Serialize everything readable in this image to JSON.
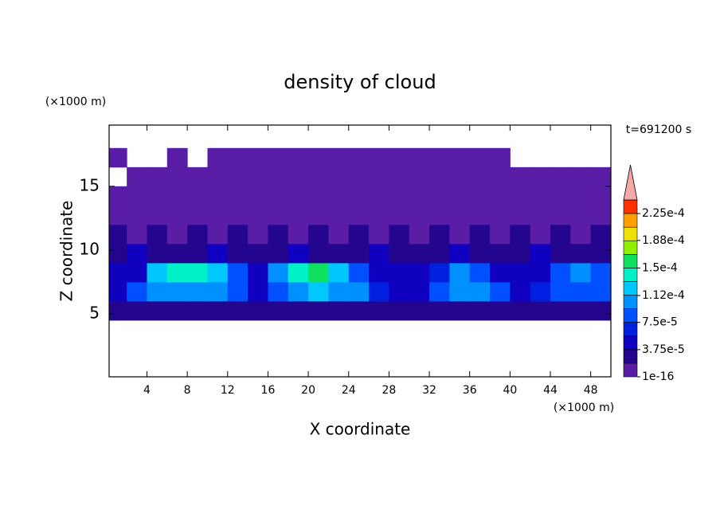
{
  "chart_data": {
    "type": "contour",
    "title": "density of cloud",
    "annotation": "t=691200 s",
    "xlabel": "X coordinate",
    "ylabel": "Z coordinate",
    "xunit": "(×1000 m)",
    "yunit": "(×1000 m)",
    "xlim": [
      0.25,
      50
    ],
    "ylim": [
      0.06,
      19.8
    ],
    "xticks": [
      4,
      8,
      12,
      16,
      20,
      24,
      28,
      32,
      36,
      40,
      44,
      48
    ],
    "yticks": [
      5,
      10,
      15
    ],
    "field": {
      "x": [
        0,
        2,
        4,
        6,
        8,
        10,
        12,
        14,
        16,
        18,
        20,
        22,
        24,
        26,
        28,
        30,
        32,
        34,
        36,
        38,
        40,
        42,
        44,
        46,
        48,
        50
      ],
      "z": [
        0,
        1.5,
        3,
        4.5,
        6,
        7.5,
        9,
        10.5,
        12,
        13.5,
        15,
        16.5,
        18,
        19.5
      ],
      "values": [
        [
          null,
          null,
          null,
          null,
          null,
          null,
          null,
          null,
          null,
          null,
          null,
          null,
          null,
          null,
          null,
          null,
          null,
          null,
          null,
          null,
          null,
          null,
          null,
          null,
          null
        ],
        [
          null,
          null,
          null,
          null,
          null,
          null,
          null,
          null,
          null,
          null,
          null,
          null,
          null,
          null,
          null,
          null,
          null,
          null,
          null,
          null,
          null,
          null,
          null,
          null,
          null
        ],
        [
          null,
          null,
          null,
          null,
          null,
          null,
          null,
          null,
          null,
          null,
          null,
          null,
          null,
          null,
          null,
          null,
          null,
          null,
          null,
          null,
          null,
          null,
          null,
          null,
          null
        ],
        [
          2.5e-05,
          2.5e-05,
          2.5e-05,
          2.5e-05,
          2.5e-05,
          2.5e-05,
          2.5e-05,
          2.5e-05,
          2.5e-05,
          2.5e-05,
          2.5e-05,
          2.5e-05,
          2.5e-05,
          2.5e-05,
          2.5e-05,
          2.5e-05,
          2.5e-05,
          2.5e-05,
          2.5e-05,
          2.5e-05,
          2.5e-05,
          2.5e-05,
          2.5e-05,
          2.5e-05,
          2.5e-05
        ],
        [
          5e-05,
          8e-05,
          0.0001,
          0.00011,
          0.00011,
          0.000105,
          9e-05,
          4e-05,
          9e-05,
          0.00011,
          0.000115,
          0.00011,
          0.0001,
          6e-05,
          4e-05,
          5e-05,
          9e-05,
          0.0001,
          0.0001,
          8e-05,
          5e-05,
          6e-05,
          8e-05,
          9e-05,
          8e-05
        ],
        [
          4e-05,
          5e-05,
          0.00012,
          0.000145,
          0.00014,
          0.00013,
          8e-05,
          4e-05,
          0.00011,
          0.000145,
          0.000155,
          0.00013,
          9e-05,
          5e-05,
          4e-05,
          4e-05,
          7e-05,
          0.000105,
          8e-05,
          5e-05,
          4e-05,
          5e-05,
          9e-05,
          0.0001,
          8e-05
        ],
        [
          3e-05,
          4e-05,
          3e-05,
          2.5e-05,
          3e-05,
          4e-05,
          3e-05,
          2.5e-05,
          3e-05,
          4e-05,
          3e-05,
          2.5e-05,
          3e-05,
          4e-05,
          3e-05,
          2.5e-05,
          3e-05,
          4e-05,
          3e-05,
          2.5e-05,
          3e-05,
          4e-05,
          3e-05,
          2.5e-05,
          3e-05
        ],
        [
          2e-05,
          1.5e-05,
          2e-05,
          1.5e-05,
          2e-05,
          1.5e-05,
          2e-05,
          1.5e-05,
          2e-05,
          1.5e-05,
          2e-05,
          1.5e-05,
          2e-05,
          1.5e-05,
          2e-05,
          1.5e-05,
          2e-05,
          1.5e-05,
          2e-05,
          1.5e-05,
          2e-05,
          1.5e-05,
          2e-05,
          1.5e-05,
          2e-05
        ],
        [
          1.2e-05,
          1.2e-05,
          1.2e-05,
          1.2e-05,
          1.2e-05,
          1.2e-05,
          1.2e-05,
          1.2e-05,
          1.2e-05,
          1.2e-05,
          1.2e-05,
          1.2e-05,
          1.2e-05,
          1.2e-05,
          1.2e-05,
          1.2e-05,
          1.2e-05,
          1.2e-05,
          1.2e-05,
          1.2e-05,
          1.2e-05,
          1.2e-05,
          1.2e-05,
          1.2e-05,
          1.2e-05
        ],
        [
          8e-06,
          8e-06,
          8e-06,
          8e-06,
          8e-06,
          8e-06,
          8e-06,
          8e-06,
          8e-06,
          8e-06,
          8e-06,
          8e-06,
          8e-06,
          8e-06,
          8e-06,
          8e-06,
          8e-06,
          8e-06,
          8e-06,
          8e-06,
          8e-06,
          8e-06,
          8e-06,
          8e-06,
          8e-06
        ],
        [
          null,
          5e-06,
          5e-06,
          5e-06,
          5e-06,
          5e-06,
          5e-06,
          5e-06,
          5e-06,
          5e-06,
          5e-06,
          5e-06,
          5e-06,
          5e-06,
          5e-06,
          5e-06,
          5e-06,
          5e-06,
          5e-06,
          5e-06,
          5e-06,
          5e-06,
          5e-06,
          5e-06,
          5e-06
        ],
        [
          3e-06,
          null,
          null,
          3e-06,
          null,
          3e-06,
          3e-06,
          3e-06,
          3e-06,
          3e-06,
          3e-06,
          3e-06,
          3e-06,
          3e-06,
          3e-06,
          3e-06,
          3e-06,
          3e-06,
          3e-06,
          3e-06,
          null,
          null,
          null,
          null,
          null
        ],
        [
          null,
          null,
          null,
          null,
          null,
          null,
          null,
          null,
          null,
          null,
          null,
          null,
          null,
          null,
          null,
          null,
          null,
          null,
          null,
          null,
          null,
          null,
          null,
          null,
          null
        ]
      ]
    },
    "colorbar": {
      "levels": [
        1e-16,
        1.875e-05,
        3.75e-05,
        5.625e-05,
        7.5e-05,
        9.375e-05,
        0.0001125,
        0.00013125,
        0.00015,
        0.00016875,
        0.0001875,
        0.00020625,
        0.000225,
        0.00024375
      ],
      "colors": [
        "#5a1ea6",
        "#24068e",
        "#1000c0",
        "#0020e0",
        "#0050ff",
        "#0090ff",
        "#00c8ff",
        "#00f0c8",
        "#10e060",
        "#90f000",
        "#f0e000",
        "#ffa000",
        "#ff3000"
      ],
      "extend_color": "#f5a8a8",
      "ticks": [
        1e-16,
        {
          "value": 3.75e-05,
          "label": "3.75e-5"
        },
        {
          "value": 7.5e-05,
          "label": "7.5e-5"
        },
        {
          "value": 0.000112,
          "label": "1.12e-4"
        },
        {
          "value": 0.00015,
          "label": "1.5e-4"
        },
        {
          "value": 0.000188,
          "label": "1.88e-4"
        },
        {
          "value": 0.000225,
          "label": "2.25e-4"
        }
      ]
    }
  }
}
